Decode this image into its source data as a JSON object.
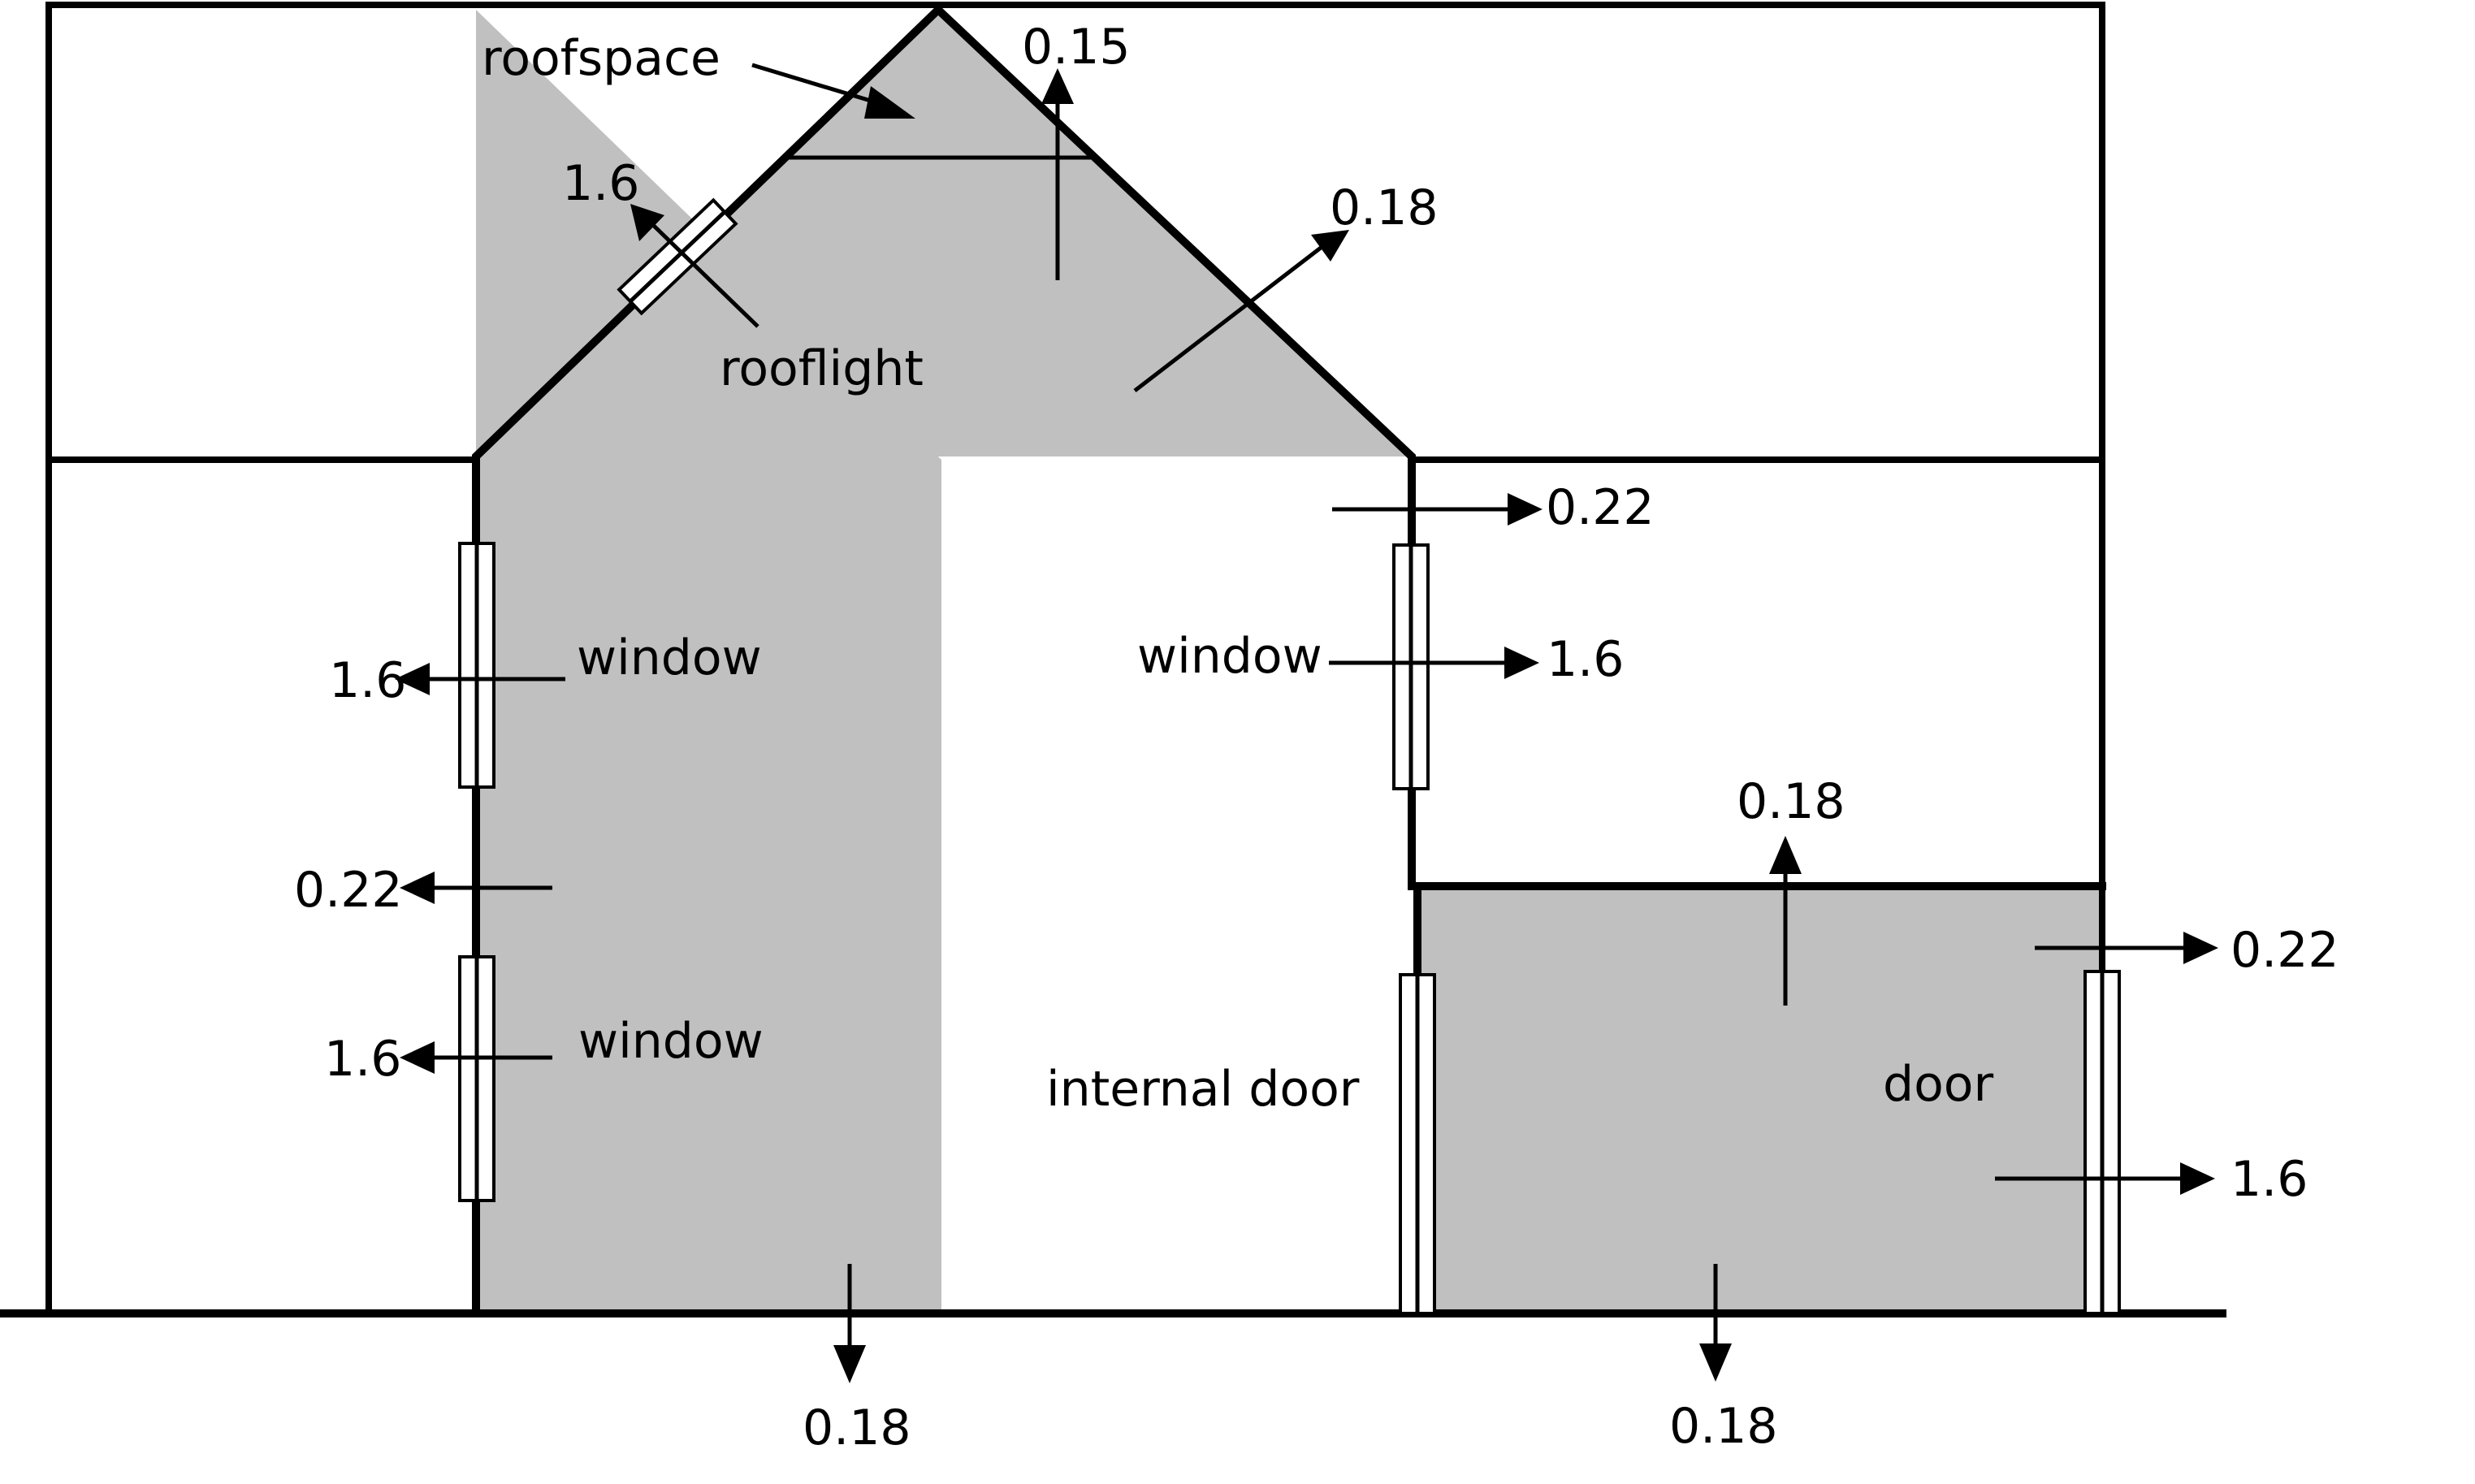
{
  "labels": {
    "roofspace": "roofspace",
    "rooflight": "rooflight",
    "window_upper_left": "window",
    "window_lower_left": "window",
    "window_right": "window",
    "internal_door": "internal door",
    "door": "door"
  },
  "u_values": {
    "roof": "0.15",
    "rooflight": "1.6",
    "roof_slope_right": "0.18",
    "upper_wall_right": "0.22",
    "window_right": "1.6",
    "window_upper_left": "1.6",
    "wall_left": "0.22",
    "window_lower_left": "1.6",
    "ground_floor_main": "0.18",
    "extension_roof": "0.18",
    "extension_wall": "0.22",
    "door": "1.6",
    "ground_floor_extension": "0.18"
  },
  "colors": {
    "heated_space": "#c0c0c0",
    "lines": "#000000",
    "background": "#ffffff"
  }
}
